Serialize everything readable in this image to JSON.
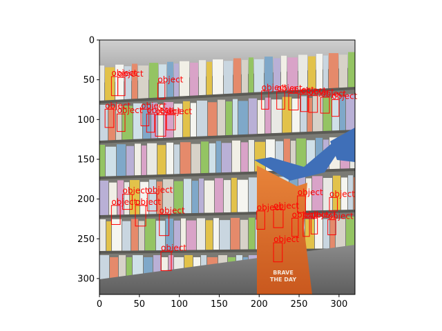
{
  "axes": {
    "x_ticks": [
      "0",
      "50",
      "100",
      "150",
      "200",
      "250",
      "300"
    ],
    "y_ticks": [
      "0",
      "50",
      "100",
      "150",
      "200",
      "250",
      "300"
    ],
    "x_range": [
      0,
      320
    ],
    "y_range": [
      0,
      320
    ]
  },
  "detection_label": "object",
  "detections": [
    {
      "label": "object",
      "x": 15,
      "y": 46,
      "w": 8,
      "h": 24
    },
    {
      "label": "object",
      "x": 23,
      "y": 47,
      "w": 9,
      "h": 23
    },
    {
      "label": "object",
      "x": 73,
      "y": 54,
      "w": 9,
      "h": 20
    },
    {
      "label": "object",
      "x": 7,
      "y": 87,
      "w": 11,
      "h": 23
    },
    {
      "label": "object",
      "x": 22,
      "y": 93,
      "w": 10,
      "h": 22
    },
    {
      "label": "object",
      "x": 52,
      "y": 87,
      "w": 10,
      "h": 21
    },
    {
      "label": "object",
      "x": 59,
      "y": 93,
      "w": 10,
      "h": 23
    },
    {
      "label": "object",
      "x": 70,
      "y": 94,
      "w": 13,
      "h": 27
    },
    {
      "label": "object",
      "x": 84,
      "y": 94,
      "w": 11,
      "h": 19
    },
    {
      "label": "object",
      "x": 203,
      "y": 64,
      "w": 9,
      "h": 23
    },
    {
      "label": "object",
      "x": 222,
      "y": 65,
      "w": 10,
      "h": 22
    },
    {
      "label": "object",
      "x": 237,
      "y": 67,
      "w": 12,
      "h": 21
    },
    {
      "label": "object",
      "x": 252,
      "y": 68,
      "w": 9,
      "h": 22
    },
    {
      "label": "object",
      "x": 262,
      "y": 70,
      "w": 11,
      "h": 21
    },
    {
      "label": "object",
      "x": 277,
      "y": 72,
      "w": 11,
      "h": 20
    },
    {
      "label": "object",
      "x": 291,
      "y": 75,
      "w": 9,
      "h": 21
    },
    {
      "label": "object",
      "x": 29,
      "y": 194,
      "w": 12,
      "h": 19
    },
    {
      "label": "object",
      "x": 60,
      "y": 193,
      "w": 12,
      "h": 22
    },
    {
      "label": "object",
      "x": 15,
      "y": 208,
      "w": 11,
      "h": 24
    },
    {
      "label": "object",
      "x": 45,
      "y": 208,
      "w": 13,
      "h": 26
    },
    {
      "label": "object",
      "x": 75,
      "y": 219,
      "w": 12,
      "h": 27
    },
    {
      "label": "object",
      "x": 197,
      "y": 215,
      "w": 10,
      "h": 23
    },
    {
      "label": "object",
      "x": 218,
      "y": 213,
      "w": 12,
      "h": 23
    },
    {
      "label": "object",
      "x": 248,
      "y": 196,
      "w": 10,
      "h": 21
    },
    {
      "label": "object",
      "x": 288,
      "y": 198,
      "w": 10,
      "h": 17
    },
    {
      "label": "object",
      "x": 241,
      "y": 224,
      "w": 8,
      "h": 23
    },
    {
      "label": "object",
      "x": 255,
      "y": 224,
      "w": 8,
      "h": 23
    },
    {
      "label": "object",
      "x": 265,
      "y": 224,
      "w": 8,
      "h": 20
    },
    {
      "label": "object",
      "x": 286,
      "y": 226,
      "w": 10,
      "h": 19
    },
    {
      "label": "object",
      "x": 218,
      "y": 255,
      "w": 11,
      "h": 24
    },
    {
      "label": "object",
      "x": 77,
      "y": 266,
      "w": 13,
      "h": 24
    }
  ],
  "photo": {
    "sign_text_line1": "BRAVE",
    "sign_text_line2": "THE DAY"
  }
}
